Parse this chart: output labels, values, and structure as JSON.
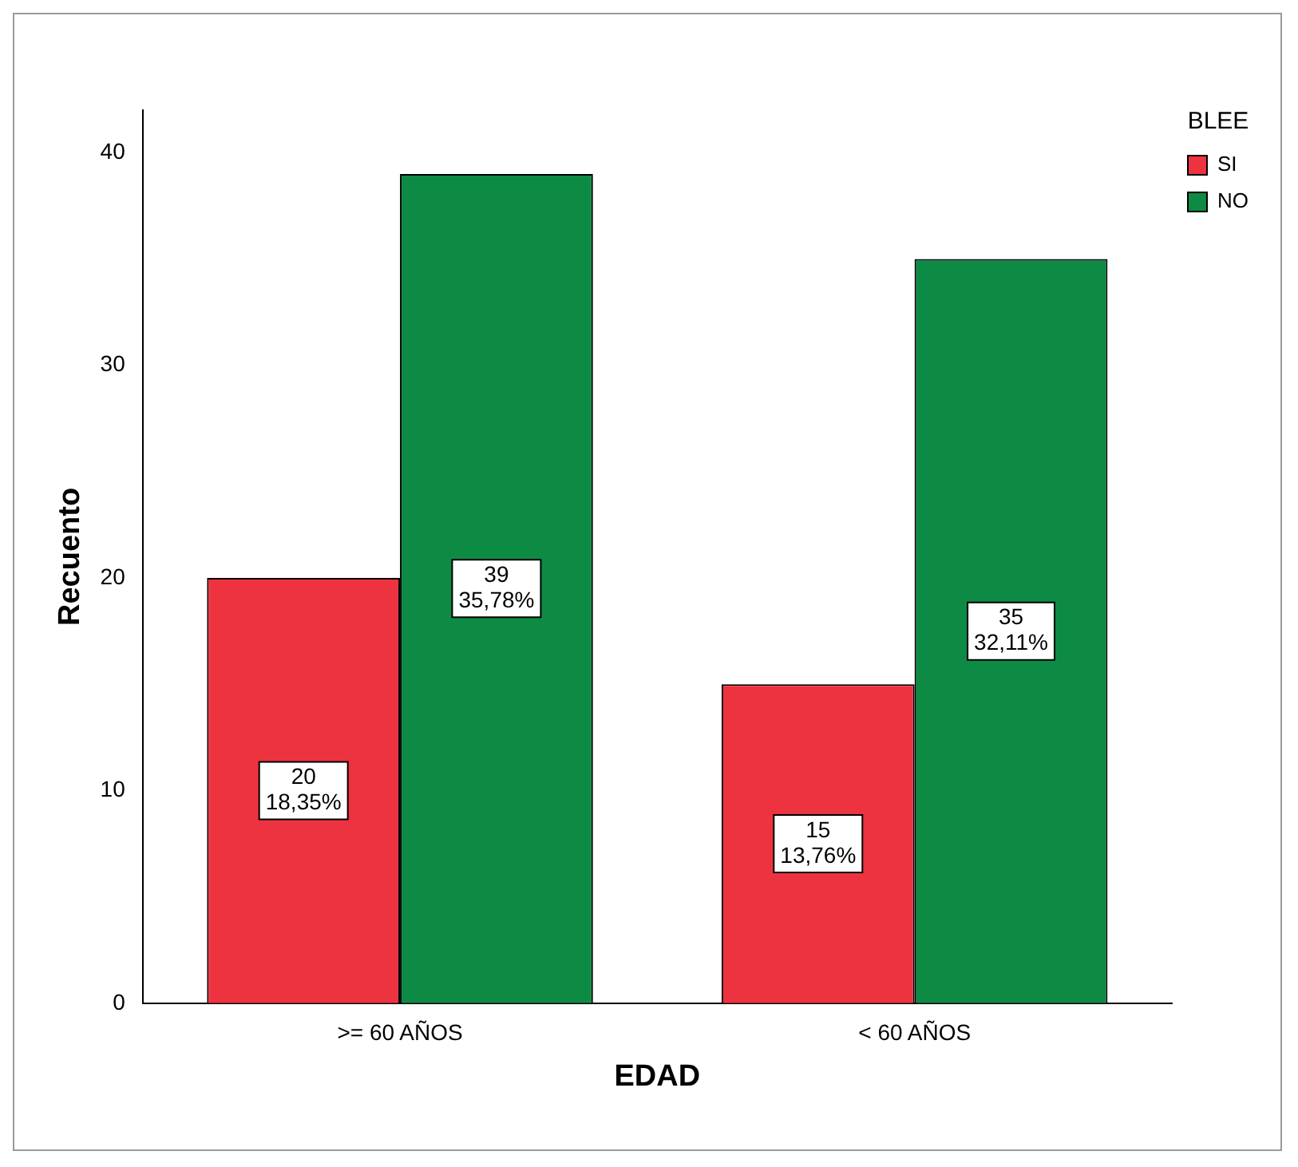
{
  "chart_data": {
    "type": "bar",
    "xlabel": "EDAD",
    "ylabel": "Recuento",
    "legend_title": "BLEE",
    "categories": [
      ">= 60 AÑOS",
      "< 60 AÑOS"
    ],
    "series": [
      {
        "name": "SI",
        "color": "#ee3340",
        "values": [
          20,
          15
        ],
        "value_labels": [
          "20\n18,35%",
          "15\n13,76%"
        ]
      },
      {
        "name": "NO",
        "color": "#0d8a44",
        "values": [
          39,
          35
        ],
        "value_labels": [
          "39\n35,78%",
          "35\n32,11%"
        ]
      }
    ],
    "ylim": [
      0,
      42
    ],
    "yticks": [
      0,
      10,
      20,
      30,
      40
    ],
    "grid": false,
    "legend": "top right"
  }
}
